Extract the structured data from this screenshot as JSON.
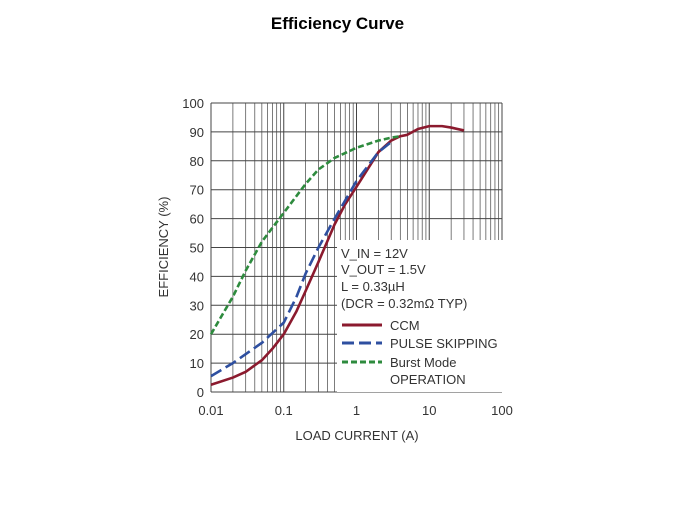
{
  "title": "Efficiency Curve",
  "chart_data": {
    "type": "line",
    "title": "Efficiency Curve",
    "xlabel": "LOAD CURRENT (A)",
    "ylabel": "EFFICIENCY (%)",
    "xscale": "log",
    "xlim": [
      0.01,
      100
    ],
    "ylim": [
      0,
      100
    ],
    "xticks": [
      "0.01",
      "0.1",
      "1",
      "10",
      "100"
    ],
    "yticks": [
      "0",
      "10",
      "20",
      "30",
      "40",
      "50",
      "60",
      "70",
      "80",
      "90",
      "100"
    ],
    "grid": true,
    "legend_position": "bottom-right",
    "annotations": [
      "V_IN = 12V",
      "V_OUT = 1.5V",
      "L = 0.33µH",
      "(DCR = 0.32mΩ TYP)"
    ],
    "series": [
      {
        "name": "CCM",
        "color": "#8b1a2e",
        "style": "solid",
        "x": [
          0.01,
          0.02,
          0.03,
          0.05,
          0.07,
          0.1,
          0.15,
          0.2,
          0.3,
          0.5,
          0.7,
          1,
          2,
          3,
          4,
          5,
          7,
          10,
          15,
          20,
          30
        ],
        "y": [
          2.5,
          5,
          7,
          11,
          15,
          20,
          28,
          35,
          45,
          58,
          65,
          71,
          83,
          87,
          88.5,
          89,
          91,
          92,
          92,
          91.5,
          90.5
        ]
      },
      {
        "name": "PULSE SKIPPING",
        "color": "#2e4fa0",
        "style": "long-dash",
        "x": [
          0.01,
          0.02,
          0.05,
          0.1,
          0.15,
          0.2,
          0.3,
          0.5,
          1,
          2,
          3
        ],
        "y": [
          5.5,
          10,
          17,
          24,
          33,
          41,
          50,
          60,
          73,
          83,
          86.5
        ]
      },
      {
        "name": "Burst Mode OPERATION",
        "color": "#2e8b3e",
        "style": "short-dash",
        "x": [
          0.01,
          0.02,
          0.03,
          0.05,
          0.1,
          0.2,
          0.3,
          0.5,
          1,
          2,
          3,
          4
        ],
        "y": [
          20,
          33,
          42,
          52,
          62,
          72,
          77,
          81,
          84.5,
          87,
          88,
          88.5
        ]
      }
    ]
  }
}
